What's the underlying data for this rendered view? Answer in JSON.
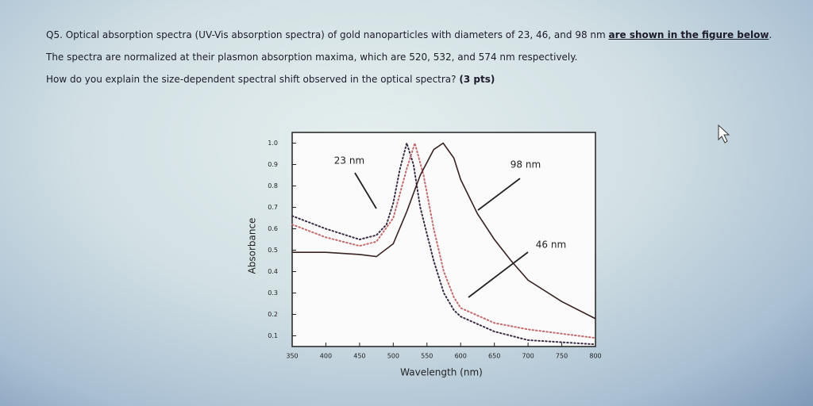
{
  "question": {
    "lead": "Q5. Optical absorption spectra (UV-Vis absorption spectra) of gold nanoparticles with diameters of 23, 46, and 98 nm",
    "underlined": "are shown in the figure below",
    "rest": ". The spectra are normalized at their plasmon absorption maxima, which are 520, 532, and 574 nm respectively.",
    "ask": "How do you explain the size-dependent spectral shift observed in the optical spectra?",
    "points": "(3 pts)"
  },
  "chart_data": {
    "type": "line",
    "xlabel": "Wavelength (nm)",
    "ylabel": "Absorbance",
    "xlim": [
      350,
      800
    ],
    "xticks": [
      350,
      400,
      450,
      500,
      550,
      600,
      650,
      700,
      750,
      800
    ],
    "ylim": [
      0.05,
      1.05
    ],
    "yticks": [
      0.1,
      0.2,
      0.3,
      0.4,
      0.5,
      0.6,
      0.7,
      0.8,
      0.9,
      {
        "value": 1,
        "label": "1.0"
      }
    ],
    "series": [
      {
        "name": "23 nm",
        "color": "#3a2c44",
        "style": "dotted",
        "x": [
          350,
          400,
          450,
          475,
          490,
          500,
          510,
          520,
          530,
          540,
          560,
          575,
          590,
          600,
          650,
          700,
          750,
          800
        ],
        "values": [
          0.66,
          0.6,
          0.55,
          0.57,
          0.62,
          0.72,
          0.88,
          1.0,
          0.9,
          0.7,
          0.45,
          0.3,
          0.22,
          0.19,
          0.12,
          0.08,
          0.07,
          0.06
        ]
      },
      {
        "name": "46 nm",
        "color": "#c46a6a",
        "style": "dotted",
        "x": [
          350,
          400,
          450,
          475,
          500,
          520,
          532,
          545,
          560,
          575,
          590,
          600,
          650,
          700,
          750,
          800
        ],
        "values": [
          0.62,
          0.56,
          0.52,
          0.54,
          0.65,
          0.88,
          1.0,
          0.85,
          0.6,
          0.4,
          0.28,
          0.23,
          0.16,
          0.13,
          0.11,
          0.09
        ]
      },
      {
        "name": "98 nm",
        "color": "#3a2222",
        "style": "solid",
        "x": [
          350,
          400,
          450,
          475,
          500,
          520,
          540,
          560,
          574,
          590,
          600,
          625,
          650,
          675,
          700,
          750,
          800
        ],
        "values": [
          0.49,
          0.49,
          0.48,
          0.47,
          0.53,
          0.68,
          0.85,
          0.97,
          1.0,
          0.93,
          0.83,
          0.67,
          0.55,
          0.45,
          0.36,
          0.26,
          0.18
        ]
      }
    ]
  }
}
